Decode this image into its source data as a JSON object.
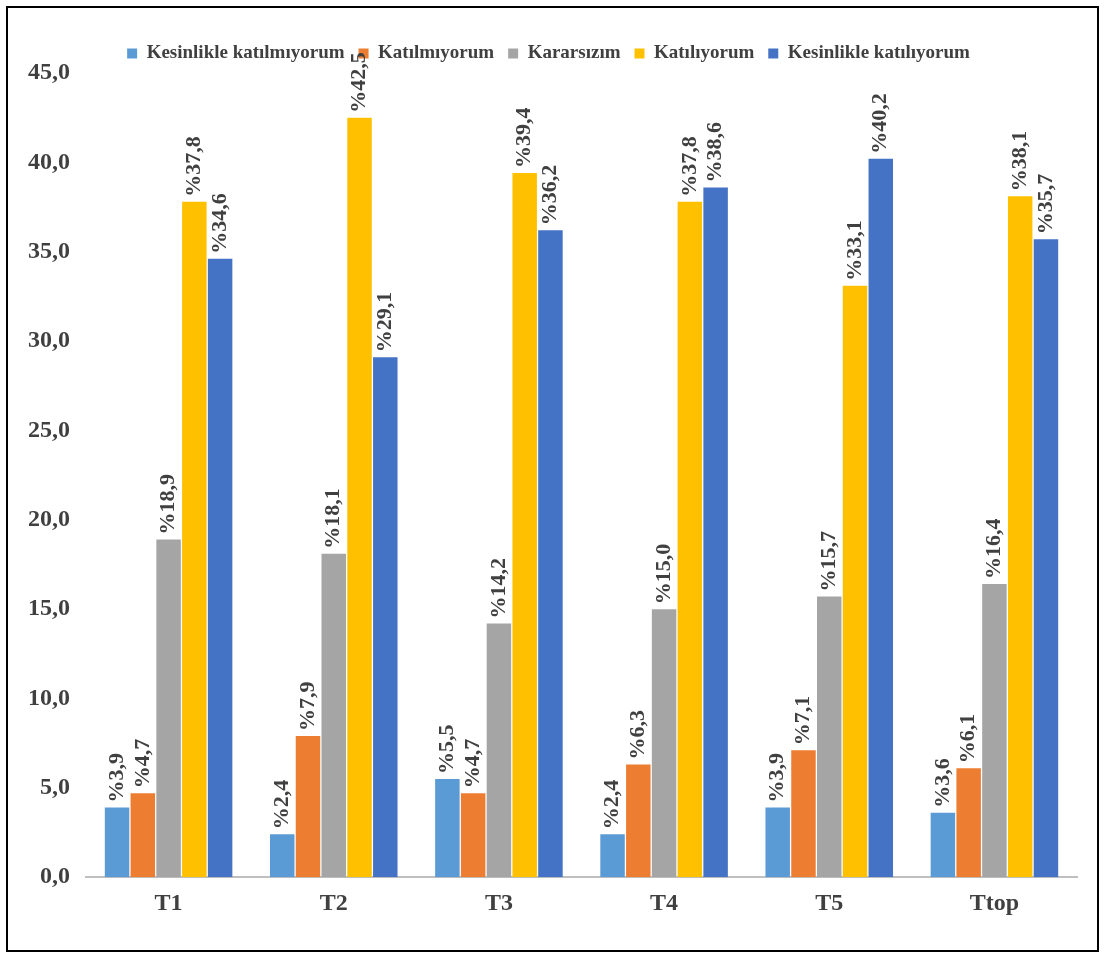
{
  "chart_data": {
    "type": "bar",
    "categories": [
      "T1",
      "T2",
      "T3",
      "T4",
      "T5",
      "Ttop"
    ],
    "series": [
      {
        "name": "Kesinlikle katılmıyorum",
        "color": "#5b9bd5",
        "values": [
          3.9,
          2.4,
          5.5,
          2.4,
          3.9,
          3.6
        ],
        "value_labels": [
          "%3,9",
          "%2,4",
          "%5,5",
          "%2,4",
          "%3,9",
          "%3,6"
        ]
      },
      {
        "name": "Katılmıyorum",
        "color": "#ed7d31",
        "values": [
          4.7,
          7.9,
          4.7,
          6.3,
          7.1,
          6.1
        ],
        "value_labels": [
          "%4,7",
          "%7,9",
          "%4,7",
          "%6,3",
          "%7,1",
          "%6,1"
        ]
      },
      {
        "name": "Kararsızım",
        "color": "#a5a5a5",
        "values": [
          18.9,
          18.1,
          14.2,
          15.0,
          15.7,
          16.4
        ],
        "value_labels": [
          "%18,9",
          "%18,1",
          "%14,2",
          "%15,0",
          "%15,7",
          "%16,4"
        ]
      },
      {
        "name": "Katılıyorum",
        "color": "#ffc000",
        "values": [
          37.8,
          42.5,
          39.4,
          37.8,
          33.1,
          38.1
        ],
        "value_labels": [
          "%37,8",
          "%42,5",
          "%39,4",
          "%37,8",
          "%33,1",
          "%38,1"
        ]
      },
      {
        "name": "Kesinlikle katılıyorum",
        "color": "#4472c4",
        "values": [
          34.6,
          29.1,
          36.2,
          38.6,
          40.2,
          35.7
        ],
        "value_labels": [
          "%34,6",
          "%29,1",
          "%36,2",
          "%38,6",
          "%40,2",
          "%35,7"
        ]
      }
    ],
    "ylim": [
      0,
      45
    ],
    "yticks": [
      {
        "value": 0,
        "label": "0,0"
      },
      {
        "value": 5,
        "label": "5,0"
      },
      {
        "value": 10,
        "label": "10,0"
      },
      {
        "value": 15,
        "label": "15,0"
      },
      {
        "value": 20,
        "label": "20,0"
      },
      {
        "value": 25,
        "label": "25,0"
      },
      {
        "value": 30,
        "label": "30,0"
      },
      {
        "value": 35,
        "label": "35,0"
      },
      {
        "value": 40,
        "label": "40,0"
      },
      {
        "value": 45,
        "label": "45,0"
      }
    ],
    "grid": false,
    "legend": "top"
  }
}
